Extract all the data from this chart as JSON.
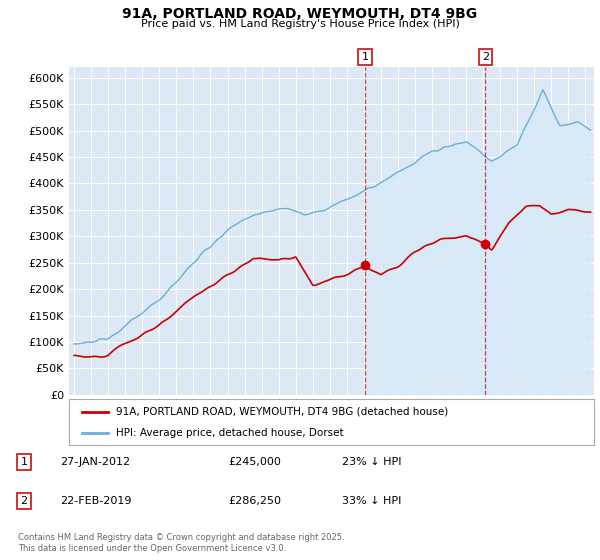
{
  "title_line1": "91A, PORTLAND ROAD, WEYMOUTH, DT4 9BG",
  "title_line2": "Price paid vs. HM Land Registry's House Price Index (HPI)",
  "ylabel_ticks": [
    "£0",
    "£50K",
    "£100K",
    "£150K",
    "£200K",
    "£250K",
    "£300K",
    "£350K",
    "£400K",
    "£450K",
    "£500K",
    "£550K",
    "£600K"
  ],
  "ytick_values": [
    0,
    50000,
    100000,
    150000,
    200000,
    250000,
    300000,
    350000,
    400000,
    450000,
    500000,
    550000,
    600000
  ],
  "ylim": [
    0,
    620000
  ],
  "xlim_start": 1994.7,
  "xlim_end": 2025.5,
  "hpi_fill_color": "#d6e8f7",
  "hpi_line_color": "#6baed6",
  "price_color": "#cc0000",
  "vline_color": "#cc2222",
  "marker1_x": 2012.08,
  "marker1_y": 245000,
  "marker1_label": "1",
  "marker1_date": "27-JAN-2012",
  "marker1_price": "£245,000",
  "marker1_hpi": "23% ↓ HPI",
  "marker2_x": 2019.13,
  "marker2_y": 286250,
  "marker2_label": "2",
  "marker2_date": "22-FEB-2019",
  "marker2_price": "£286,250",
  "marker2_hpi": "33% ↓ HPI",
  "legend_line1": "91A, PORTLAND ROAD, WEYMOUTH, DT4 9BG (detached house)",
  "legend_line2": "HPI: Average price, detached house, Dorset",
  "footer": "Contains HM Land Registry data © Crown copyright and database right 2025.\nThis data is licensed under the Open Government Licence v3.0.",
  "bg_color": "#dce9f5",
  "shade_start_x": 2012.08
}
